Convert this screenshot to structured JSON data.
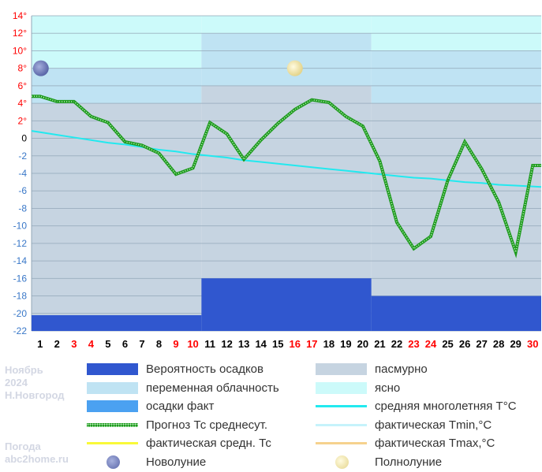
{
  "colors": {
    "probability": "#3057cf",
    "overcast": "#c6d4e1",
    "partly_cloudy": "#bfe3f3",
    "clear": "#ccfafa",
    "precip_fact": "#4ba1f1",
    "forecast_line": "#1d9a1d",
    "norm_line": "#22e9ef",
    "tmin_line": "#c6f3fb",
    "avg_fact": "#f9f938",
    "tmax_line": "#f6d28e",
    "tick_black": "#000000",
    "tick_red": "#ff0000",
    "tick_blue": "#3a78c8",
    "grid": "#93a7b8"
  },
  "sidebar": {
    "month": "Ноябрь",
    "year": "2024",
    "city": "Н.Новгород",
    "site_line1": "Погода",
    "site_line2": "abc2home.ru"
  },
  "legend": [
    {
      "label": "Вероятность осадков",
      "swatch": "box",
      "color": "#3057cf"
    },
    {
      "label": "пасмурно",
      "swatch": "box",
      "color": "#c6d4e1"
    },
    {
      "label": "переменная облачность",
      "swatch": "box",
      "color": "#bfe3f3"
    },
    {
      "label": "ясно",
      "swatch": "box",
      "color": "#ccfafa"
    },
    {
      "label": "осадки факт",
      "swatch": "box",
      "color": "#4ba1f1"
    },
    {
      "label": "средняя многолетняя T°C",
      "swatch": "line",
      "color": "#22e9ef"
    },
    {
      "label": "Прогноз Тс среднесут.",
      "swatch": "dotted",
      "color": "#1d9a1d"
    },
    {
      "label": "фактическая Tmin,°C",
      "swatch": "line",
      "color": "#c6f3fb"
    },
    {
      "label": "фактическая средн. Тс",
      "swatch": "line",
      "color": "#f9f938"
    },
    {
      "label": "фактическая Tmax,°C",
      "swatch": "line",
      "color": "#f6d28e"
    },
    {
      "label": "Новолуние",
      "swatch": "new-moon",
      "color": "#6f7fbf"
    },
    {
      "label": "Полнолуние",
      "swatch": "full-moon",
      "color": "#f3eab0"
    }
  ],
  "chart_data": {
    "type": "line",
    "x": [
      1,
      2,
      3,
      4,
      5,
      6,
      7,
      8,
      9,
      10,
      11,
      12,
      13,
      14,
      15,
      16,
      17,
      18,
      19,
      20,
      21,
      22,
      23,
      24,
      25,
      26,
      27,
      28,
      29,
      30
    ],
    "x_tick_colors": [
      "black",
      "black",
      "red",
      "red",
      "black",
      "black",
      "black",
      "black",
      "red",
      "red",
      "black",
      "black",
      "black",
      "black",
      "black",
      "red",
      "red",
      "black",
      "black",
      "black",
      "black",
      "black",
      "red",
      "red",
      "black",
      "black",
      "black",
      "black",
      "black",
      "red"
    ],
    "ylim": [
      -22,
      14
    ],
    "y_ticks": [
      14,
      12,
      10,
      8,
      6,
      4,
      2,
      0,
      -2,
      -4,
      -6,
      -8,
      -10,
      -12,
      -14,
      -16,
      -18,
      -20,
      -22
    ],
    "y_tick_labels": [
      "14°",
      "12°",
      "10°",
      "8°",
      "6°",
      "4°",
      "2°",
      "0",
      "-2",
      "-4",
      "-6",
      "-8",
      "-10",
      "-12",
      "-14",
      "-16",
      "-18",
      "-20",
      "-22"
    ],
    "grid": true,
    "series": [
      {
        "name": "Прогноз Тс среднесут.",
        "values": [
          4.8,
          4.2,
          4.2,
          2.5,
          1.8,
          -0.4,
          -0.8,
          -1.7,
          -4.1,
          -3.4,
          1.8,
          0.5,
          -2.4,
          -0.2,
          1.7,
          3.3,
          4.4,
          4.1,
          2.5,
          1.4,
          -2.6,
          -9.6,
          -12.6,
          -11.2,
          -4.8,
          -0.4,
          -3.5,
          -7.3,
          -13.0,
          -3.1
        ]
      },
      {
        "name": "средняя многолетняя T°C",
        "values": [
          0.7,
          0.4,
          0.1,
          -0.2,
          -0.5,
          -0.7,
          -1.0,
          -1.3,
          -1.5,
          -1.8,
          -2.0,
          -2.2,
          -2.5,
          -2.7,
          -2.9,
          -3.1,
          -3.3,
          -3.5,
          -3.7,
          -3.9,
          -4.1,
          -4.3,
          -4.5,
          -4.6,
          -4.8,
          -5.0,
          -5.1,
          -5.3,
          -5.4,
          -5.5
        ]
      }
    ],
    "sky_blocks": [
      {
        "from_day": 1,
        "to_day": 10,
        "overcast_top": 4,
        "partly_cloudy_top": 8,
        "clear_top": 14,
        "precip_probability_percent": 5
      },
      {
        "from_day": 11,
        "to_day": 20,
        "overcast_top": 6,
        "partly_cloudy_top": 12,
        "clear_top": 14,
        "precip_probability_percent": 16.7
      },
      {
        "from_day": 21,
        "to_day": 30,
        "overcast_top": 4,
        "partly_cloudy_top": 10,
        "clear_top": 14,
        "precip_probability_percent": 11.1
      }
    ],
    "moon_phases": [
      {
        "type": "new",
        "day": 1,
        "label": "Новолуние"
      },
      {
        "type": "full",
        "day": 16,
        "label": "Полнолуние"
      }
    ]
  }
}
